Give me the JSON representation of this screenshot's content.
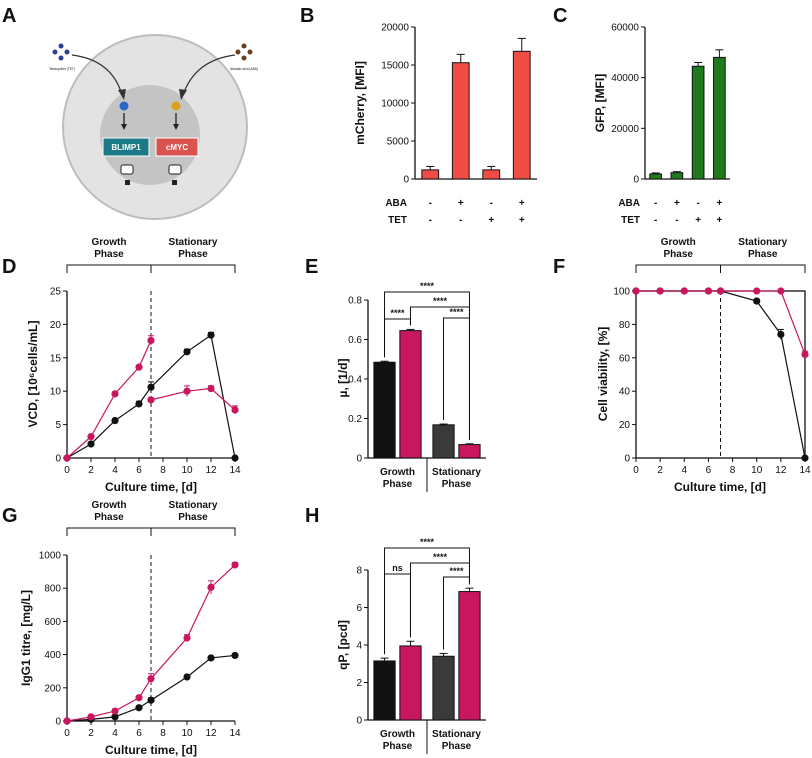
{
  "colors": {
    "control": "#111111",
    "engineered": "#c8175f",
    "stationary_control": "#3a3a3a",
    "mcherry": "#f14c46",
    "gfp": "#1f7a1f",
    "cell": "#e3e3e3",
    "nucleus": "#c4c4c4",
    "blimp1": "#1a7b86",
    "cmyc": "#d9534f"
  },
  "panel_labels": {
    "A": "A",
    "B": "B",
    "C": "C",
    "D": "D",
    "E": "E",
    "F": "F",
    "G": "G",
    "H": "H"
  },
  "phase_labels": {
    "growth_1": "Growth",
    "growth_2": "Phase",
    "stationary_1": "Stationary",
    "stationary_2": "Phase"
  },
  "schematic": {
    "gene_left": "BLIMP1",
    "gene_right": "cMYC",
    "inducer_left": "Tetracycline (TET)",
    "inducer_right": "Abscisic acid (ABA)"
  },
  "chart_data": [
    {
      "id": "B",
      "type": "bar",
      "title": "",
      "ylabel": "mCherry, [MFI]",
      "ylim": [
        0,
        20000
      ],
      "yticks": [
        0,
        5000,
        10000,
        15000,
        20000
      ],
      "row_labels": [
        "ABA",
        "TET"
      ],
      "conditions": [
        [
          "-",
          "+",
          "-",
          "+"
        ],
        [
          "-",
          "-",
          "+",
          "+"
        ]
      ],
      "values": [
        1200,
        15300,
        1200,
        16800
      ],
      "errors": [
        450,
        1100,
        450,
        1700
      ]
    },
    {
      "id": "C",
      "type": "bar",
      "title": "",
      "ylabel": "GFP, [MFI]",
      "ylim": [
        0,
        60000
      ],
      "yticks": [
        0,
        20000,
        40000,
        60000
      ],
      "row_labels": [
        "ABA",
        "TET"
      ],
      "conditions": [
        [
          "-",
          "+",
          "-",
          "+"
        ],
        [
          "-",
          "-",
          "+",
          "+"
        ]
      ],
      "values": [
        2000,
        2500,
        44500,
        48000
      ],
      "errors": [
        400,
        400,
        1500,
        3000
      ]
    },
    {
      "id": "D",
      "type": "line",
      "xlabel": "Culture time, [d]",
      "ylabel": "VCD, [10⁶cells/mL]",
      "xlim": [
        0,
        14
      ],
      "ylim": [
        0,
        25
      ],
      "xticks": [
        0,
        2,
        4,
        6,
        8,
        10,
        12,
        14
      ],
      "yticks": [
        0,
        5,
        10,
        15,
        20,
        25
      ],
      "phase_split": 7,
      "series": [
        {
          "name": "control",
          "x": [
            0,
            2,
            4,
            6,
            7,
            10,
            12,
            14
          ],
          "y": [
            0,
            2.1,
            5.6,
            8.1,
            10.6,
            15.9,
            18.4,
            0
          ],
          "err": [
            0,
            0.2,
            0.3,
            0.4,
            0.8,
            0.4,
            0.4,
            0
          ]
        },
        {
          "name": "engineered_growth",
          "x": [
            0,
            2,
            4,
            6,
            7
          ],
          "y": [
            0,
            3.2,
            9.6,
            13.6,
            17.6
          ],
          "err": [
            0,
            0.2,
            0.3,
            0.3,
            0.7
          ]
        },
        {
          "name": "engineered_stationary",
          "x": [
            7,
            10,
            12,
            14
          ],
          "y": [
            8.7,
            10.0,
            10.4,
            7.2
          ],
          "err": [
            0.3,
            0.8,
            0.4,
            0.6
          ]
        }
      ]
    },
    {
      "id": "E",
      "type": "bar",
      "ylabel": "µ, [1/d]",
      "ylim": [
        0,
        0.8
      ],
      "yticks": [
        0.0,
        0.2,
        0.4,
        0.6,
        0.8
      ],
      "groups": [
        "Growth Phase",
        "Stationary Phase"
      ],
      "values": [
        0.485,
        0.645,
        0.168,
        0.068
      ],
      "errors": [
        0.005,
        0.006,
        0.004,
        0.004
      ],
      "significance": [
        "****",
        "****",
        "****",
        "****"
      ]
    },
    {
      "id": "F",
      "type": "line",
      "xlabel": "Culture time, [d]",
      "ylabel": "Cell viability, [%]",
      "xlim": [
        0,
        14
      ],
      "ylim": [
        0,
        100
      ],
      "xticks": [
        0,
        2,
        4,
        6,
        8,
        10,
        12,
        14
      ],
      "yticks": [
        0,
        20,
        40,
        60,
        80,
        100
      ],
      "phase_split": 7,
      "series": [
        {
          "name": "control",
          "x": [
            0,
            2,
            4,
            6,
            7,
            10,
            12,
            14
          ],
          "y": [
            100,
            100,
            100,
            100,
            100,
            94,
            74,
            0
          ],
          "err": [
            0,
            0,
            0,
            0,
            0,
            1,
            3,
            0
          ]
        },
        {
          "name": "engineered",
          "x": [
            0,
            2,
            4,
            6,
            7,
            10,
            12,
            14
          ],
          "y": [
            100,
            100,
            100,
            100,
            100,
            100,
            100,
            62
          ],
          "err": [
            0,
            0,
            0,
            0,
            0,
            0,
            0,
            2
          ]
        }
      ]
    },
    {
      "id": "G",
      "type": "line",
      "xlabel": "Culture time, [d]",
      "ylabel": "IgG1 titre, [mg/L]",
      "xlim": [
        0,
        14
      ],
      "ylim": [
        0,
        1000
      ],
      "xticks": [
        0,
        2,
        4,
        6,
        8,
        10,
        12,
        14
      ],
      "yticks": [
        0,
        200,
        400,
        600,
        800,
        1000
      ],
      "phase_split": 7,
      "series": [
        {
          "name": "control",
          "x": [
            0,
            2,
            4,
            6,
            7,
            10,
            12,
            14
          ],
          "y": [
            0,
            10,
            25,
            80,
            125,
            265,
            380,
            395
          ],
          "err": [
            0,
            3,
            5,
            10,
            15,
            12,
            10,
            10
          ]
        },
        {
          "name": "engineered",
          "x": [
            0,
            2,
            4,
            6,
            7,
            10,
            12,
            14
          ],
          "y": [
            0,
            25,
            60,
            140,
            255,
            500,
            805,
            940
          ],
          "err": [
            0,
            5,
            8,
            12,
            30,
            20,
            40,
            15
          ]
        }
      ]
    },
    {
      "id": "H",
      "type": "bar",
      "ylabel": "qP, [pcd]",
      "ylim": [
        0,
        8
      ],
      "yticks": [
        0,
        2,
        4,
        6,
        8
      ],
      "groups": [
        "Growth Phase",
        "Stationary Phase"
      ],
      "values": [
        3.15,
        3.95,
        3.4,
        6.85
      ],
      "errors": [
        0.15,
        0.25,
        0.15,
        0.18
      ],
      "significance": [
        "****",
        "ns",
        "****",
        "****"
      ]
    }
  ]
}
